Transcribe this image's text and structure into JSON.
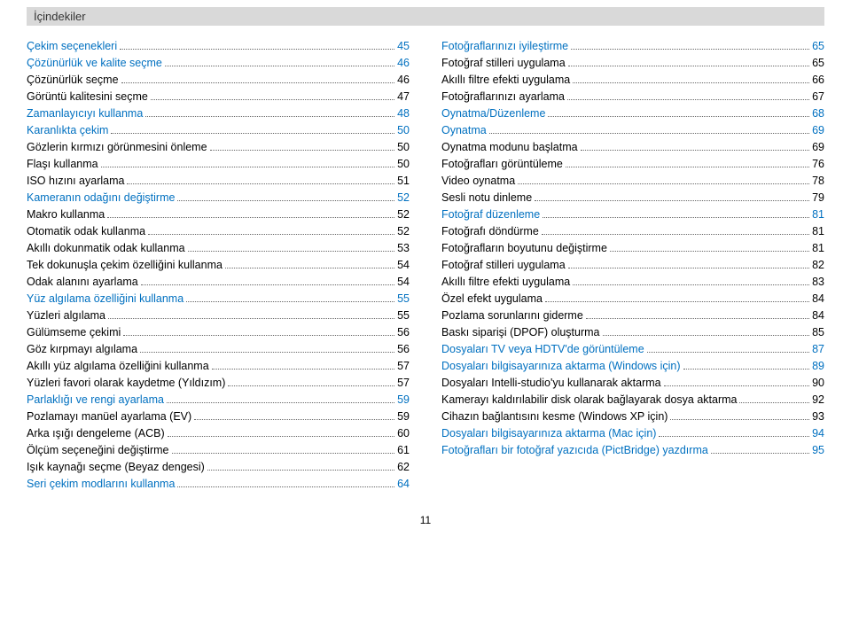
{
  "header": "İçindekiler",
  "pagenum": "11",
  "colors": {
    "link": "#0070c0",
    "text": "#000000",
    "header_bg": "#d9d9d9"
  },
  "left": [
    {
      "label": "Çekim seçenekleri",
      "page": "45",
      "color": "blue"
    },
    {
      "label": "Çözünürlük ve kalite seçme",
      "page": "46",
      "color": "blue"
    },
    {
      "label": "Çözünürlük seçme",
      "page": "46",
      "color": "black"
    },
    {
      "label": "Görüntü kalitesini seçme",
      "page": "47",
      "color": "black"
    },
    {
      "label": "Zamanlayıcıyı kullanma",
      "page": "48",
      "color": "blue"
    },
    {
      "label": "Karanlıkta çekim",
      "page": "50",
      "color": "blue"
    },
    {
      "label": "Gözlerin kırmızı görünmesini önleme",
      "page": "50",
      "color": "black"
    },
    {
      "label": "Flaşı kullanma",
      "page": "50",
      "color": "black"
    },
    {
      "label": "ISO hızını ayarlama",
      "page": "51",
      "color": "black"
    },
    {
      "label": "Kameranın odağını değiştirme",
      "page": "52",
      "color": "blue"
    },
    {
      "label": "Makro kullanma",
      "page": "52",
      "color": "black"
    },
    {
      "label": "Otomatik odak kullanma",
      "page": "52",
      "color": "black"
    },
    {
      "label": "Akıllı dokunmatik odak kullanma",
      "page": "53",
      "color": "black"
    },
    {
      "label": "Tek dokunuşla çekim özelliğini kullanma",
      "page": "54",
      "color": "black"
    },
    {
      "label": "Odak alanını ayarlama",
      "page": "54",
      "color": "black"
    },
    {
      "label": "Yüz algılama özelliğini kullanma",
      "page": "55",
      "color": "blue"
    },
    {
      "label": "Yüzleri algılama",
      "page": "55",
      "color": "black"
    },
    {
      "label": "Gülümseme çekimi",
      "page": "56",
      "color": "black"
    },
    {
      "label": "Göz kırpmayı algılama",
      "page": "56",
      "color": "black"
    },
    {
      "label": "Akıllı yüz algılama özelliğini kullanma",
      "page": "57",
      "color": "black"
    },
    {
      "label": "Yüzleri favori olarak kaydetme (Yıldızım)",
      "page": "57",
      "color": "black"
    },
    {
      "label": "Parlaklığı ve rengi ayarlama",
      "page": "59",
      "color": "blue"
    },
    {
      "label": "Pozlamayı manüel ayarlama (EV)",
      "page": "59",
      "color": "black"
    },
    {
      "label": "Arka ışığı dengeleme (ACB)",
      "page": "60",
      "color": "black"
    },
    {
      "label": "Ölçüm seçeneğini değiştirme",
      "page": "61",
      "color": "black"
    },
    {
      "label": "Işık kaynağı seçme (Beyaz dengesi)",
      "page": "62",
      "color": "black"
    },
    {
      "label": "Seri çekim modlarını kullanma",
      "page": "64",
      "color": "blue"
    }
  ],
  "right": [
    {
      "label": "Fotoğraflarınızı iyileştirme",
      "page": "65",
      "color": "blue"
    },
    {
      "label": "Fotoğraf stilleri uygulama",
      "page": "65",
      "color": "black"
    },
    {
      "label": "Akıllı filtre efekti uygulama",
      "page": "66",
      "color": "black"
    },
    {
      "label": "Fotoğraflarınızı ayarlama",
      "page": "67",
      "color": "black"
    },
    {
      "label": "Oynatma/Düzenleme",
      "page": "68",
      "color": "blue"
    },
    {
      "label": "Oynatma",
      "page": "69",
      "color": "blue"
    },
    {
      "label": "Oynatma modunu başlatma",
      "page": "69",
      "color": "black"
    },
    {
      "label": "Fotoğrafları görüntüleme",
      "page": "76",
      "color": "black"
    },
    {
      "label": "Video oynatma",
      "page": "78",
      "color": "black"
    },
    {
      "label": "Sesli notu dinleme",
      "page": "79",
      "color": "black"
    },
    {
      "label": "Fotoğraf düzenleme",
      "page": "81",
      "color": "blue"
    },
    {
      "label": "Fotoğrafı döndürme",
      "page": "81",
      "color": "black"
    },
    {
      "label": "Fotoğrafların boyutunu değiştirme",
      "page": "81",
      "color": "black"
    },
    {
      "label": "Fotoğraf stilleri uygulama",
      "page": "82",
      "color": "black"
    },
    {
      "label": "Akıllı filtre efekti uygulama",
      "page": "83",
      "color": "black"
    },
    {
      "label": "Özel efekt uygulama",
      "page": "84",
      "color": "black"
    },
    {
      "label": "Pozlama sorunlarını giderme",
      "page": "84",
      "color": "black"
    },
    {
      "label": "Baskı siparişi (DPOF) oluşturma",
      "page": "85",
      "color": "black"
    },
    {
      "label": "Dosyaları TV veya HDTV'de görüntüleme",
      "page": "87",
      "color": "blue"
    },
    {
      "label": "Dosyaları bilgisayarınıza aktarma (Windows için)",
      "page": "89",
      "color": "blue"
    },
    {
      "label": "Dosyaları Intelli-studio'yu kullanarak aktarma",
      "page": "90",
      "color": "black"
    },
    {
      "label": "Kamerayı kaldırılabilir disk olarak bağlayarak dosya aktarma",
      "page": "92",
      "color": "black"
    },
    {
      "label": "Cihazın bağlantısını kesme (Windows XP için)",
      "page": "93",
      "color": "black"
    },
    {
      "label": "Dosyaları bilgisayarınıza aktarma (Mac için)",
      "page": "94",
      "color": "blue"
    },
    {
      "label": "Fotoğrafları bir fotoğraf yazıcıda (PictBridge) yazdırma",
      "page": "95",
      "color": "blue"
    }
  ]
}
